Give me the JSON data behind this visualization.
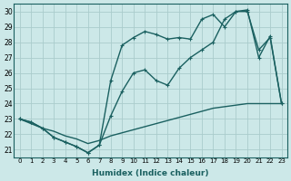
{
  "xlabel": "Humidex (Indice chaleur)",
  "bg_color": "#cce8e8",
  "grid_color": "#aacccc",
  "line_color": "#1a6060",
  "xlim": [
    -0.5,
    23.5
  ],
  "ylim": [
    20.5,
    30.5
  ],
  "xticks": [
    0,
    1,
    2,
    3,
    4,
    5,
    6,
    7,
    8,
    9,
    10,
    11,
    12,
    13,
    14,
    15,
    16,
    17,
    18,
    19,
    20,
    21,
    22,
    23
  ],
  "yticks": [
    21,
    22,
    23,
    24,
    25,
    26,
    27,
    28,
    29,
    30
  ],
  "series": [
    {
      "x": [
        0,
        1,
        2,
        3,
        4,
        5,
        6,
        7,
        8,
        9,
        10,
        11,
        12,
        13,
        14,
        15,
        16,
        17,
        18,
        19,
        20,
        21,
        22,
        23
      ],
      "y": [
        23.0,
        22.7,
        22.4,
        22.2,
        21.9,
        21.7,
        21.4,
        21.6,
        21.9,
        22.1,
        22.3,
        22.5,
        22.7,
        22.9,
        23.1,
        23.3,
        23.5,
        23.7,
        23.8,
        23.9,
        24.0,
        24.0,
        24.0,
        24.0
      ],
      "has_marker": false,
      "lw": 1.0
    },
    {
      "x": [
        0,
        1,
        2,
        3,
        4,
        5,
        6,
        7,
        8,
        9,
        10,
        11,
        12,
        13,
        14,
        15,
        16,
        17,
        18,
        19,
        20,
        21,
        22,
        23
      ],
      "y": [
        23.0,
        22.8,
        22.4,
        21.8,
        21.5,
        21.2,
        20.8,
        21.3,
        23.2,
        24.8,
        26.0,
        26.2,
        25.5,
        25.2,
        26.3,
        27.0,
        27.5,
        28.0,
        29.5,
        30.0,
        30.0,
        27.5,
        28.3,
        24.0
      ],
      "has_marker": true,
      "lw": 1.0
    },
    {
      "x": [
        0,
        1,
        2,
        3,
        4,
        5,
        6,
        7,
        8,
        9,
        10,
        11,
        12,
        13,
        14,
        15,
        16,
        17,
        18,
        19,
        20,
        21,
        22,
        23
      ],
      "y": [
        23.0,
        22.8,
        22.4,
        21.8,
        21.5,
        21.2,
        20.8,
        21.3,
        25.5,
        27.8,
        28.3,
        28.7,
        28.5,
        28.2,
        28.3,
        28.2,
        29.5,
        29.8,
        29.0,
        30.0,
        30.1,
        27.0,
        28.4,
        24.0
      ],
      "has_marker": true,
      "lw": 1.0
    }
  ]
}
